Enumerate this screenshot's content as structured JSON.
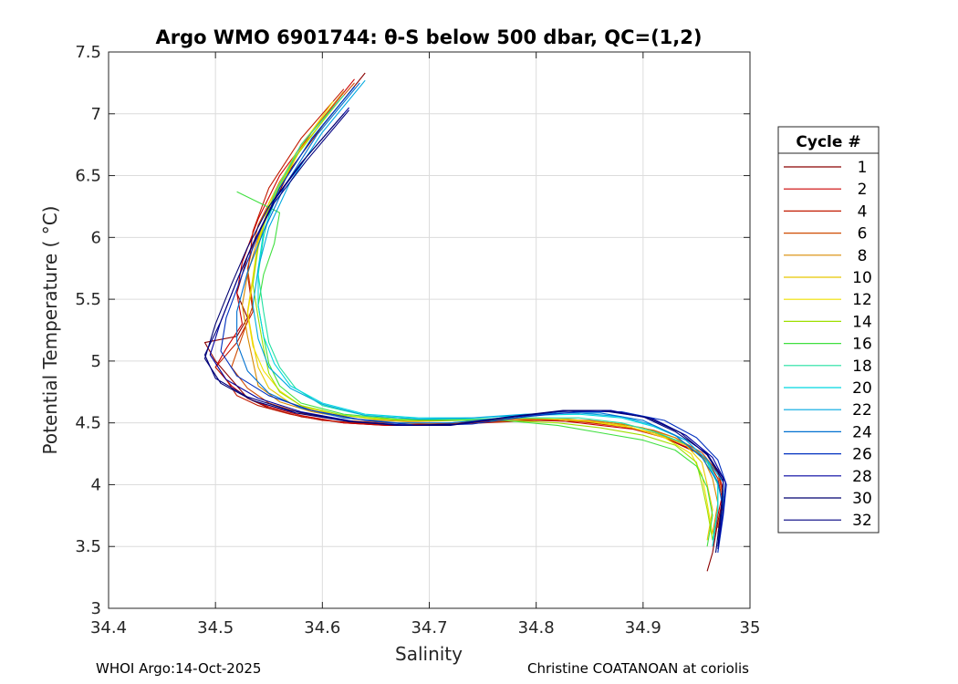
{
  "chart_data": {
    "type": "line",
    "title": "Argo WMO 6901744: θ-S below 500 dbar,  QC=(1,2)",
    "xlabel": "Salinity",
    "ylabel": "Potential Temperature ( °C)",
    "xlim": [
      34.4,
      35
    ],
    "ylim": [
      3,
      7.5
    ],
    "xticks": [
      "34.4",
      "34.5",
      "34.6",
      "34.7",
      "34.8",
      "34.9",
      "35"
    ],
    "yticks": [
      "3",
      "3.5",
      "4",
      "4.5",
      "5",
      "5.5",
      "6",
      "6.5",
      "7",
      "7.5"
    ],
    "grid": true,
    "legend": {
      "title": "Cycle #",
      "position": "right",
      "entries": [
        {
          "label": "1",
          "color": "#8b0000"
        },
        {
          "label": "2",
          "color": "#cc0000"
        },
        {
          "label": "4",
          "color": "#c21a00"
        },
        {
          "label": "6",
          "color": "#cf4a00"
        },
        {
          "label": "8",
          "color": "#d98a00"
        },
        {
          "label": "10",
          "color": "#e8c800"
        },
        {
          "label": "12",
          "color": "#f0e000"
        },
        {
          "label": "14",
          "color": "#9fe000"
        },
        {
          "label": "16",
          "color": "#40e040"
        },
        {
          "label": "18",
          "color": "#20e0a0"
        },
        {
          "label": "20",
          "color": "#00d8e0"
        },
        {
          "label": "22",
          "color": "#00a8e0"
        },
        {
          "label": "24",
          "color": "#0070d0"
        },
        {
          "label": "26",
          "color": "#0030c0"
        },
        {
          "label": "28",
          "color": "#0000a0"
        },
        {
          "label": "30",
          "color": "#000070"
        },
        {
          "label": "32",
          "color": "#000080"
        }
      ]
    },
    "series": [
      {
        "name": "1",
        "color": "#8b0000",
        "x": [
          34.64,
          34.6,
          34.57,
          34.55,
          34.53,
          34.52,
          34.53,
          34.52,
          34.49,
          34.5,
          34.52,
          34.53,
          34.55,
          34.58,
          34.62,
          34.66,
          34.7,
          34.74,
          34.78,
          34.82,
          34.86,
          34.89,
          34.92,
          34.95,
          34.97,
          34.975,
          34.97,
          34.965,
          34.96
        ],
        "y": [
          7.33,
          6.9,
          6.55,
          6.2,
          5.85,
          5.55,
          5.35,
          5.2,
          5.15,
          5.0,
          4.8,
          4.7,
          4.62,
          4.55,
          4.5,
          4.48,
          4.48,
          4.5,
          4.52,
          4.53,
          4.5,
          4.46,
          4.38,
          4.26,
          4.1,
          3.9,
          3.7,
          3.45,
          3.3
        ]
      },
      {
        "name": "2",
        "color": "#cc0000",
        "x": [
          34.63,
          34.59,
          34.56,
          34.54,
          34.525,
          34.52,
          34.525,
          34.51,
          34.5,
          34.515,
          34.53,
          34.55,
          34.58,
          34.62,
          34.66,
          34.7,
          34.74,
          34.78,
          34.82,
          34.86,
          34.89,
          34.92,
          34.95,
          34.97,
          34.975,
          34.97,
          34.965
        ],
        "y": [
          7.28,
          6.85,
          6.5,
          6.15,
          5.8,
          5.55,
          5.3,
          5.1,
          4.95,
          4.8,
          4.7,
          4.63,
          4.56,
          4.5,
          4.48,
          4.49,
          4.51,
          4.52,
          4.52,
          4.48,
          4.45,
          4.38,
          4.27,
          4.12,
          3.95,
          3.75,
          3.5
        ]
      },
      {
        "name": "4",
        "color": "#c21a00",
        "x": [
          34.62,
          34.58,
          34.55,
          34.535,
          34.53,
          34.535,
          34.52,
          34.5,
          34.51,
          34.52,
          34.54,
          34.57,
          34.6,
          34.65,
          34.7,
          34.75,
          34.8,
          34.84,
          34.88,
          34.91,
          34.94,
          34.96,
          34.97,
          34.975,
          34.97
        ],
        "y": [
          7.2,
          6.8,
          6.4,
          6.05,
          5.7,
          5.4,
          5.15,
          4.95,
          4.85,
          4.72,
          4.64,
          4.57,
          4.52,
          4.49,
          4.48,
          4.5,
          4.52,
          4.51,
          4.47,
          4.42,
          4.33,
          4.2,
          4.05,
          3.85,
          3.6
        ]
      },
      {
        "name": "6",
        "color": "#cf4a00",
        "x": [
          34.63,
          34.59,
          34.56,
          34.54,
          34.53,
          34.535,
          34.525,
          34.515,
          34.53,
          34.55,
          34.58,
          34.62,
          34.66,
          34.71,
          34.76,
          34.81,
          34.85,
          34.88,
          34.91,
          34.93,
          34.955,
          34.97,
          34.975,
          34.97
        ],
        "y": [
          7.25,
          6.85,
          6.45,
          6.1,
          5.75,
          5.45,
          5.2,
          4.95,
          4.78,
          4.66,
          4.58,
          4.52,
          4.5,
          4.49,
          4.51,
          4.53,
          4.52,
          4.49,
          4.44,
          4.38,
          4.26,
          4.1,
          3.9,
          3.65
        ]
      },
      {
        "name": "8",
        "color": "#d98a00",
        "x": [
          34.62,
          34.58,
          34.555,
          34.54,
          34.53,
          34.525,
          34.53,
          34.535,
          34.54,
          34.56,
          34.59,
          34.63,
          34.68,
          34.73,
          34.78,
          34.83,
          34.87,
          34.9,
          34.93,
          34.955,
          34.965,
          34.97,
          34.965
        ],
        "y": [
          7.18,
          6.75,
          6.35,
          6.0,
          5.7,
          5.45,
          5.2,
          5.0,
          4.8,
          4.67,
          4.59,
          4.53,
          4.51,
          4.52,
          4.53,
          4.53,
          4.5,
          4.46,
          4.38,
          4.24,
          4.05,
          3.85,
          3.6
        ]
      },
      {
        "name": "10",
        "color": "#e8c800",
        "x": [
          34.62,
          34.58,
          34.555,
          34.54,
          34.535,
          34.53,
          34.535,
          34.54,
          34.55,
          34.57,
          34.6,
          34.64,
          34.69,
          34.74,
          34.79,
          34.84,
          34.88,
          34.91,
          34.94,
          34.955,
          34.96,
          34.965,
          34.96
        ],
        "y": [
          7.15,
          6.72,
          6.32,
          5.98,
          5.68,
          5.4,
          5.15,
          4.95,
          4.78,
          4.66,
          4.58,
          4.54,
          4.52,
          4.53,
          4.54,
          4.52,
          4.48,
          4.42,
          4.32,
          4.18,
          4.0,
          3.8,
          3.55
        ]
      },
      {
        "name": "12",
        "color": "#f0e000",
        "x": [
          34.61,
          34.575,
          34.55,
          34.54,
          34.535,
          34.53,
          34.535,
          34.545,
          34.56,
          34.58,
          34.61,
          34.65,
          34.7,
          34.75,
          34.8,
          34.85,
          34.89,
          34.92,
          34.945,
          34.955,
          34.96,
          34.965
        ],
        "y": [
          7.1,
          6.68,
          6.28,
          5.95,
          5.65,
          5.38,
          5.12,
          4.92,
          4.76,
          4.64,
          4.57,
          4.53,
          4.52,
          4.53,
          4.54,
          4.51,
          4.46,
          4.38,
          4.25,
          4.08,
          3.85,
          3.6
        ]
      },
      {
        "name": "14",
        "color": "#9fe000",
        "x": [
          34.61,
          34.575,
          34.55,
          34.54,
          34.535,
          34.54,
          34.545,
          34.55,
          34.56,
          34.58,
          34.62,
          34.67,
          34.72,
          34.77,
          34.82,
          34.86,
          34.9,
          34.93,
          34.95,
          34.955,
          34.96,
          34.965
        ],
        "y": [
          7.05,
          6.65,
          6.25,
          5.92,
          5.62,
          5.35,
          5.1,
          4.9,
          4.75,
          4.64,
          4.56,
          4.52,
          4.52,
          4.52,
          4.5,
          4.46,
          4.4,
          4.32,
          4.18,
          4.0,
          3.8,
          3.55
        ]
      },
      {
        "name": "16",
        "color": "#40e040",
        "x": [
          34.52,
          34.56,
          34.555,
          34.545,
          34.54,
          34.545,
          34.55,
          34.56,
          34.58,
          34.62,
          34.67,
          34.72,
          34.77,
          34.82,
          34.86,
          34.9,
          34.93,
          34.95,
          34.96,
          34.965,
          34.96
        ],
        "y": [
          6.37,
          6.2,
          5.95,
          5.7,
          5.45,
          5.2,
          4.98,
          4.8,
          4.66,
          4.57,
          4.53,
          4.52,
          4.52,
          4.48,
          4.42,
          4.36,
          4.28,
          4.15,
          3.98,
          3.75,
          3.5
        ]
      },
      {
        "name": "18",
        "color": "#20e0a0",
        "x": [
          34.62,
          34.58,
          34.555,
          34.545,
          34.54,
          34.545,
          34.55,
          34.56,
          34.575,
          34.6,
          34.64,
          34.69,
          34.74,
          34.79,
          34.84,
          34.88,
          34.91,
          34.94,
          34.96,
          34.97,
          34.97,
          34.965
        ],
        "y": [
          7.15,
          6.75,
          6.35,
          6.0,
          5.7,
          5.4,
          5.15,
          4.95,
          4.78,
          4.64,
          4.56,
          4.53,
          4.53,
          4.54,
          4.54,
          4.5,
          4.43,
          4.33,
          4.18,
          4.0,
          3.8,
          3.55
        ]
      },
      {
        "name": "20",
        "color": "#00d8e0",
        "x": [
          34.63,
          34.59,
          34.56,
          34.545,
          34.54,
          34.54,
          34.545,
          34.555,
          34.57,
          34.6,
          34.64,
          34.69,
          34.74,
          34.79,
          34.84,
          34.88,
          34.91,
          34.94,
          34.96,
          34.97,
          34.97,
          34.965
        ],
        "y": [
          7.22,
          6.8,
          6.4,
          6.05,
          5.75,
          5.45,
          5.2,
          4.98,
          4.8,
          4.66,
          4.57,
          4.54,
          4.54,
          4.56,
          4.57,
          4.54,
          4.47,
          4.36,
          4.2,
          4.02,
          3.8,
          3.5
        ]
      },
      {
        "name": "22",
        "color": "#00a8e0",
        "x": [
          34.64,
          34.6,
          34.57,
          34.55,
          34.54,
          34.535,
          34.54,
          34.55,
          34.57,
          34.6,
          34.64,
          34.69,
          34.74,
          34.79,
          34.84,
          34.88,
          34.91,
          34.94,
          34.96,
          34.975,
          34.975,
          34.97
        ],
        "y": [
          7.27,
          6.85,
          6.45,
          6.08,
          5.75,
          5.45,
          5.18,
          4.95,
          4.78,
          4.65,
          4.56,
          4.53,
          4.54,
          4.57,
          4.58,
          4.55,
          4.48,
          4.36,
          4.2,
          4.02,
          3.8,
          3.55
        ]
      },
      {
        "name": "24",
        "color": "#0070d0",
        "x": [
          34.635,
          34.595,
          34.565,
          34.545,
          34.53,
          34.52,
          34.52,
          34.53,
          34.55,
          34.58,
          34.62,
          34.67,
          34.72,
          34.77,
          34.82,
          34.86,
          34.9,
          34.93,
          34.955,
          34.97,
          34.975,
          34.97
        ],
        "y": [
          7.25,
          6.83,
          6.42,
          6.05,
          5.72,
          5.4,
          5.15,
          4.92,
          4.74,
          4.62,
          4.54,
          4.5,
          4.5,
          4.54,
          4.58,
          4.58,
          4.52,
          4.4,
          4.22,
          4.02,
          3.8,
          3.5
        ]
      },
      {
        "name": "26",
        "color": "#0030c0",
        "x": [
          34.63,
          34.59,
          34.56,
          34.54,
          34.525,
          34.51,
          34.505,
          34.52,
          34.55,
          34.59,
          34.64,
          34.69,
          34.74,
          34.79,
          34.84,
          34.88,
          34.92,
          34.95,
          34.97,
          34.978,
          34.975,
          34.97
        ],
        "y": [
          7.22,
          6.8,
          6.4,
          6.02,
          5.7,
          5.35,
          5.08,
          4.88,
          4.72,
          4.6,
          4.52,
          4.48,
          4.49,
          4.55,
          4.59,
          4.59,
          4.52,
          4.38,
          4.2,
          4.0,
          3.75,
          3.45
        ]
      },
      {
        "name": "28",
        "color": "#0000a0",
        "x": [
          34.625,
          34.585,
          34.555,
          34.535,
          34.52,
          34.505,
          34.495,
          34.51,
          34.54,
          34.58,
          34.63,
          34.68,
          34.73,
          34.78,
          34.83,
          34.87,
          34.91,
          34.94,
          34.965,
          34.977,
          34.975,
          34.97
        ],
        "y": [
          7.05,
          6.65,
          6.3,
          5.95,
          5.65,
          5.32,
          5.05,
          4.85,
          4.7,
          4.59,
          4.51,
          4.48,
          4.49,
          4.55,
          4.6,
          4.6,
          4.53,
          4.4,
          4.22,
          4.02,
          3.78,
          3.48
        ]
      },
      {
        "name": "30",
        "color": "#000070",
        "x": [
          34.62,
          34.58,
          34.55,
          34.53,
          34.515,
          34.5,
          34.49,
          34.505,
          34.535,
          34.575,
          34.625,
          34.675,
          34.725,
          34.775,
          34.825,
          34.865,
          34.905,
          34.935,
          34.96,
          34.975,
          34.973,
          34.968
        ],
        "y": [
          7.0,
          6.6,
          6.25,
          5.92,
          5.62,
          5.3,
          5.02,
          4.82,
          4.68,
          4.58,
          4.51,
          4.48,
          4.49,
          4.55,
          4.6,
          4.6,
          4.54,
          4.42,
          4.24,
          4.03,
          3.8,
          3.45
        ]
      },
      {
        "name": "32",
        "color": "#000080",
        "x": [
          34.625,
          34.585,
          34.555,
          34.535,
          34.52,
          34.505,
          34.49,
          34.5,
          34.53,
          34.57,
          34.62,
          34.67,
          34.72,
          34.77,
          34.82,
          34.86,
          34.9,
          34.93,
          34.96,
          34.975,
          34.974,
          34.97
        ],
        "y": [
          7.03,
          6.62,
          6.28,
          5.95,
          5.65,
          5.32,
          5.05,
          4.86,
          4.71,
          4.6,
          4.52,
          4.48,
          4.48,
          4.54,
          4.59,
          4.6,
          4.55,
          4.43,
          4.25,
          4.05,
          3.82,
          3.5
        ]
      }
    ]
  },
  "footer": {
    "left": "WHOI Argo:14-Oct-2025",
    "right": "Christine COATANOAN at coriolis"
  }
}
